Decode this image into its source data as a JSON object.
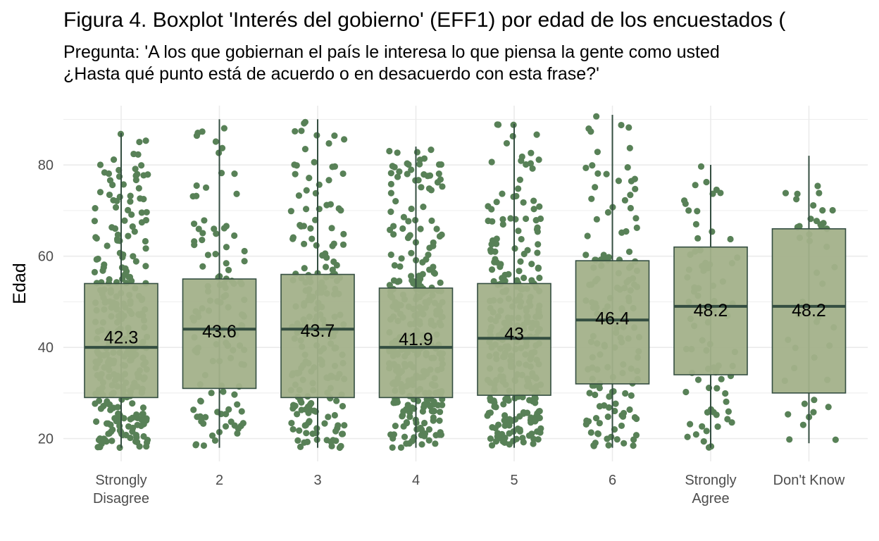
{
  "chart_data": {
    "type": "boxplot",
    "title": "Figura 4. Boxplot 'Interés del gobierno' (EFF1) por edad de los encuestados (",
    "subtitle": [
      "Pregunta: 'A los que gobiernan el país le interesa lo que piensa la gente como usted",
      "¿Hasta qué punto está de acuerdo o en desacuerdo con esta frase?'"
    ],
    "xlabel": "",
    "ylabel": "Edad",
    "ylim": [
      15,
      93
    ],
    "yticks": [
      20,
      40,
      60,
      80
    ],
    "categories": [
      [
        "Strongly",
        "Disagree"
      ],
      [
        "2"
      ],
      [
        "3"
      ],
      [
        "4"
      ],
      [
        "5"
      ],
      [
        "6"
      ],
      [
        "Strongly",
        "Agree"
      ],
      [
        "Don't Know"
      ]
    ],
    "boxes": [
      {
        "q1": 29,
        "median": 40,
        "q3": 54,
        "whisker_low": 18,
        "whisker_high": 87,
        "mean_label": "42.3"
      },
      {
        "q1": 31,
        "median": 44,
        "q3": 55,
        "whisker_low": 18,
        "whisker_high": 90,
        "mean_label": "43.6"
      },
      {
        "q1": 29,
        "median": 44,
        "q3": 56,
        "whisker_low": 18,
        "whisker_high": 90,
        "mean_label": "43.7"
      },
      {
        "q1": 29,
        "median": 40,
        "q3": 53,
        "whisker_low": 18,
        "whisker_high": 84,
        "mean_label": "41.9"
      },
      {
        "q1": 29.5,
        "median": 42,
        "q3": 54,
        "whisker_low": 18,
        "whisker_high": 89,
        "mean_label": "43"
      },
      {
        "q1": 32,
        "median": 46,
        "q3": 59,
        "whisker_low": 18,
        "whisker_high": 91,
        "mean_label": "46.4"
      },
      {
        "q1": 34,
        "median": 49,
        "q3": 62,
        "whisker_low": 18,
        "whisker_high": 80,
        "mean_label": "48.2"
      },
      {
        "q1": 30,
        "median": 49,
        "q3": 66,
        "whisker_low": 19,
        "whisker_high": 82,
        "mean_label": "48.2"
      }
    ],
    "jitter_points_per_group": [
      300,
      120,
      220,
      320,
      300,
      150,
      80,
      45
    ],
    "grid": true,
    "colors": {
      "box_fill": "#a3b18a",
      "box_line": "#344e41",
      "points": "#588157",
      "grid": "#ebebeb"
    }
  }
}
